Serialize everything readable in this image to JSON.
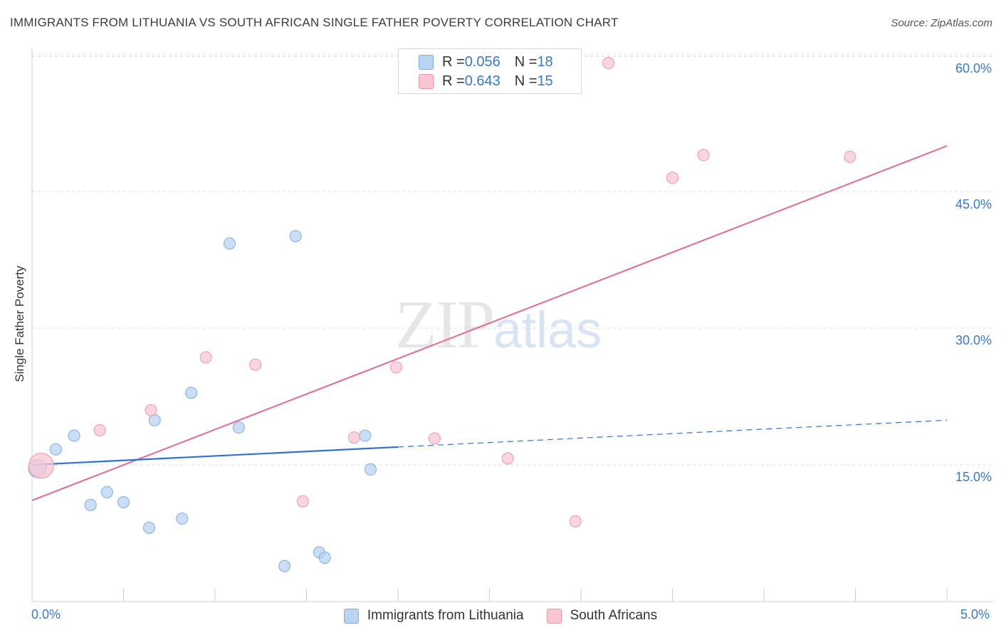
{
  "title": "IMMIGRANTS FROM LITHUANIA VS SOUTH AFRICAN SINGLE FATHER POVERTY CORRELATION CHART",
  "source": "Source: ZipAtlas.com",
  "watermark": {
    "zip": "ZIP",
    "atlas": "atlas"
  },
  "legend_top": {
    "row1": {
      "r_label": "R = ",
      "r_value": "0.056",
      "n_label": "N = ",
      "n_value": "18"
    },
    "row2": {
      "r_label": "R = ",
      "r_value": "0.643",
      "n_label": "N = ",
      "n_value": "15"
    }
  },
  "legend_bottom": {
    "series1": "Immigrants from Lithuania",
    "series2": "South Africans"
  },
  "y_axis_label": "Single Father Poverty",
  "y_ticks": [
    "60.0%",
    "45.0%",
    "30.0%",
    "15.0%"
  ],
  "x_ticks": {
    "left": "0.0%",
    "right": "5.0%"
  },
  "colors": {
    "blue_fill": "#b9d3f2",
    "blue_stroke": "#7eaee0",
    "blue_line": "#2f72d2",
    "pink_fill": "#f8c5d3",
    "pink_stroke": "#ec97b0",
    "pink_line": "#e06b93",
    "grid": "#dddddd",
    "axis_text": "#3a78c9"
  },
  "chart_data": {
    "type": "scatter",
    "title": "IMMIGRANTS FROM LITHUANIA VS SOUTH AFRICAN SINGLE FATHER POVERTY CORRELATION CHART",
    "xlabel": "",
    "ylabel": "Single Father Poverty",
    "xlim": [
      0,
      5
    ],
    "ylim": [
      0,
      63
    ],
    "yticks": [
      15,
      30,
      45,
      60
    ],
    "grid": true,
    "legend": "bottom",
    "series": [
      {
        "name": "Immigrants from Lithuania",
        "color": "#b9d3f2",
        "points": [
          [
            0.03,
            14.6,
            1.6
          ],
          [
            0.13,
            16.7,
            1
          ],
          [
            0.23,
            18.2,
            1
          ],
          [
            0.32,
            10.6,
            1
          ],
          [
            0.41,
            12.0,
            1
          ],
          [
            0.5,
            10.9,
            1
          ],
          [
            0.64,
            8.1,
            1
          ],
          [
            0.67,
            19.9,
            1
          ],
          [
            0.82,
            9.1,
            1
          ],
          [
            0.87,
            22.9,
            1
          ],
          [
            1.08,
            39.3,
            1
          ],
          [
            1.13,
            19.1,
            1
          ],
          [
            1.38,
            3.9,
            1
          ],
          [
            1.44,
            40.1,
            1
          ],
          [
            1.57,
            5.4,
            1
          ],
          [
            1.6,
            4.8,
            1
          ],
          [
            1.82,
            18.2,
            1
          ],
          [
            1.85,
            14.5,
            1
          ]
        ],
        "trend": {
          "x": [
            0,
            5
          ],
          "y": [
            15.0,
            19.9
          ],
          "solid_until": 2.0
        }
      },
      {
        "name": "South Africans",
        "color": "#f8c5d3",
        "points": [
          [
            0.05,
            14.9,
            2.2
          ],
          [
            0.37,
            18.8,
            1
          ],
          [
            0.65,
            21.0,
            1
          ],
          [
            0.95,
            26.8,
            1
          ],
          [
            1.22,
            26.0,
            1
          ],
          [
            1.48,
            11.0,
            1
          ],
          [
            1.76,
            18.0,
            1
          ],
          [
            1.99,
            25.7,
            1
          ],
          [
            2.2,
            17.9,
            1
          ],
          [
            2.6,
            15.7,
            1
          ],
          [
            2.97,
            8.8,
            1
          ],
          [
            3.15,
            59.1,
            1
          ],
          [
            3.5,
            46.5,
            1
          ],
          [
            3.67,
            49.0,
            1
          ],
          [
            4.47,
            48.8,
            1
          ]
        ],
        "trend": {
          "x": [
            0,
            5
          ],
          "y": [
            11.1,
            50.0
          ]
        }
      }
    ]
  }
}
